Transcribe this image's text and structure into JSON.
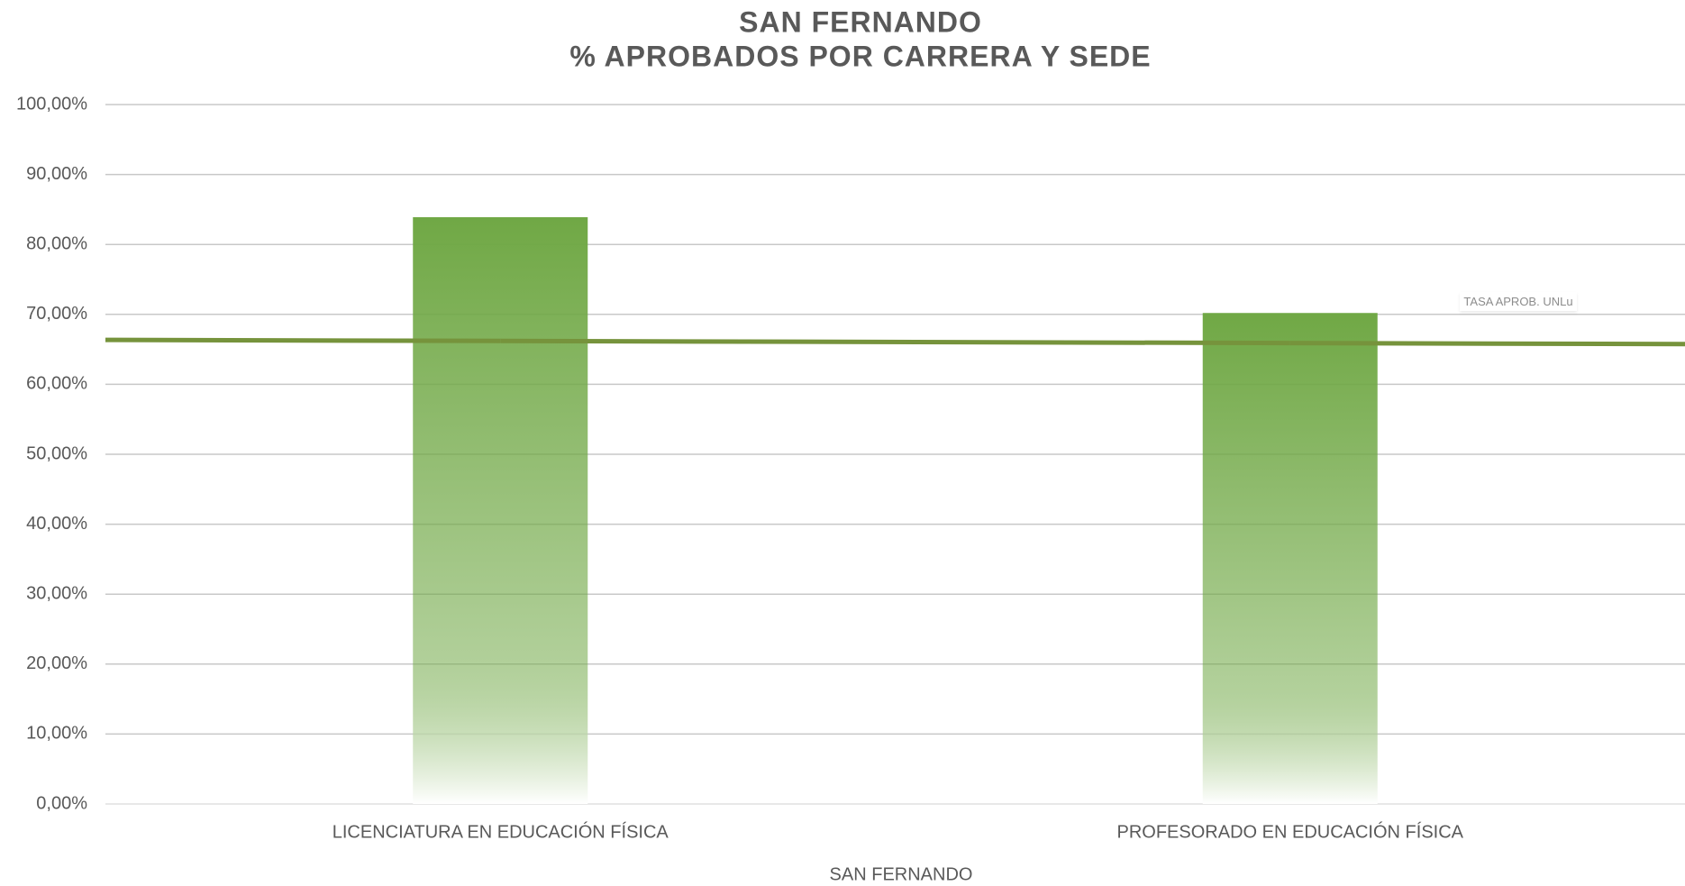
{
  "chart_data": {
    "type": "bar",
    "title": "SAN FERNANDO",
    "subtitle": "% APROBADOS POR CARRERA Y SEDE",
    "x_label": "SAN FERNANDO",
    "categories": [
      "LICENCIATURA EN EDUCACIÓN FÍSICA",
      "PROFESORADO EN EDUCACIÓN FÍSICA"
    ],
    "series": [
      {
        "name": null,
        "type": "bar",
        "color": "#70a845",
        "values": [
          83.9,
          70.2
        ]
      },
      {
        "name": "TASA APROB. UNLu",
        "type": "line",
        "color": "#76933c",
        "values": [
          66.2,
          65.9
        ]
      }
    ],
    "ylim": [
      0,
      100
    ],
    "yticks": [
      {
        "value": 0,
        "label": "0,00%"
      },
      {
        "value": 10,
        "label": "10,00%"
      },
      {
        "value": 20,
        "label": "20,00%"
      },
      {
        "value": 30,
        "label": "30,00%"
      },
      {
        "value": 40,
        "label": "40,00%"
      },
      {
        "value": 50,
        "label": "50,00%"
      },
      {
        "value": 60,
        "label": "60,00%"
      },
      {
        "value": 70,
        "label": "70,00%"
      },
      {
        "value": 80,
        "label": "80,00%"
      },
      {
        "value": 90,
        "label": "90,00%"
      },
      {
        "value": 100,
        "label": "100,00%"
      }
    ],
    "grid": true
  }
}
